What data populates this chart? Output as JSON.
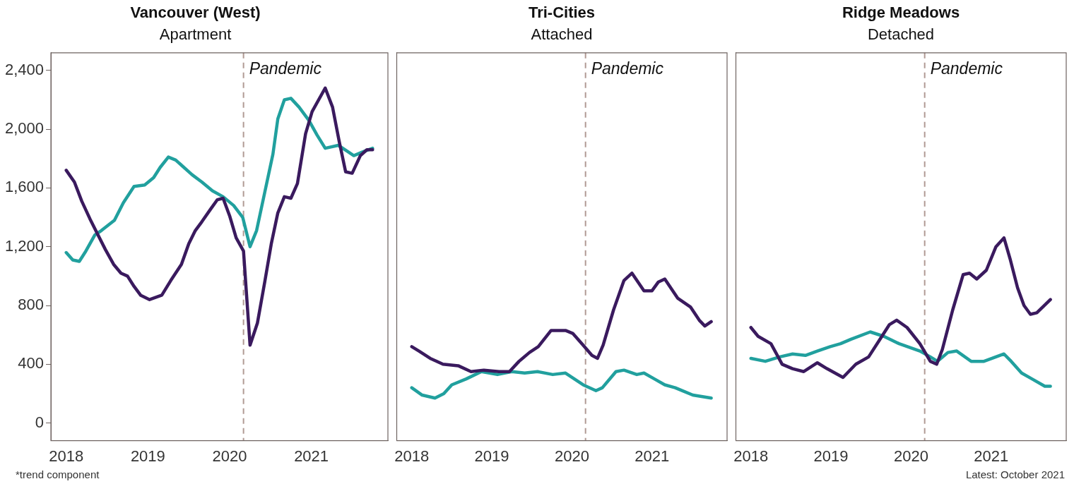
{
  "chart_data": [
    {
      "type": "line",
      "title": "Vancouver (West)",
      "subtitle": "Apartment",
      "legend": false,
      "line_style": "solid",
      "marker": "none",
      "xlim": [
        2017.8125,
        2021.9375
      ],
      "xticks": [
        2018,
        2019,
        2020,
        2021
      ],
      "ylim": [
        -120,
        2520
      ],
      "yticks": [
        {
          "value": 0,
          "label": "0"
        },
        {
          "value": 400,
          "label": "400"
        },
        {
          "value": 800,
          "label": "800"
        },
        {
          "value": 1200,
          "label": "1,200"
        },
        {
          "value": 1600,
          "label": "1,600"
        },
        {
          "value": 2000,
          "label": "2,000"
        },
        {
          "value": 2400,
          "label": "2,400"
        }
      ],
      "series": [
        {
          "color": "#3a1a5e",
          "x": [
            2018.0,
            2018.1,
            2018.19,
            2018.29,
            2018.38,
            2018.48,
            2018.58,
            2018.67,
            2018.75,
            2018.83,
            2018.91,
            2019.02,
            2019.17,
            2019.28,
            2019.41,
            2019.5,
            2019.58,
            2019.66,
            2019.76,
            2019.85,
            2019.92,
            2020.0,
            2020.08,
            2020.17,
            2020.25,
            2020.34,
            2020.43,
            2020.51,
            2020.59,
            2020.67,
            2020.75,
            2020.83,
            2020.93,
            2021.01,
            2021.17,
            2021.26,
            2021.34,
            2021.42,
            2021.5,
            2021.6,
            2021.68,
            2021.75
          ],
          "values": [
            1720,
            1640,
            1510,
            1390,
            1290,
            1180,
            1080,
            1020,
            1000,
            930,
            870,
            840,
            870,
            970,
            1080,
            1220,
            1310,
            1370,
            1450,
            1520,
            1530,
            1410,
            1260,
            1170,
            530,
            680,
            960,
            1220,
            1430,
            1540,
            1530,
            1630,
            1970,
            2120,
            2280,
            2150,
            1920,
            1710,
            1700,
            1820,
            1860,
            1860
          ]
        },
        {
          "color": "#21a09e",
          "x": [
            2018.0,
            2018.08,
            2018.16,
            2018.24,
            2018.35,
            2018.43,
            2018.59,
            2018.7,
            2018.83,
            2018.96,
            2019.07,
            2019.15,
            2019.25,
            2019.34,
            2019.54,
            2019.66,
            2019.79,
            2019.92,
            2020.05,
            2020.16,
            2020.25,
            2020.33,
            2020.43,
            2020.53,
            2020.59,
            2020.67,
            2020.75,
            2020.85,
            2020.97,
            2021.07,
            2021.17,
            2021.33,
            2021.44,
            2021.52,
            2021.65,
            2021.75
          ],
          "values": [
            1160,
            1110,
            1100,
            1170,
            1280,
            1310,
            1380,
            1500,
            1610,
            1620,
            1670,
            1740,
            1810,
            1790,
            1690,
            1640,
            1580,
            1540,
            1480,
            1400,
            1200,
            1310,
            1570,
            1830,
            2070,
            2200,
            2210,
            2150,
            2060,
            1960,
            1870,
            1890,
            1850,
            1820,
            1850,
            1870
          ]
        }
      ],
      "ref_lines": [
        {
          "axis": "x",
          "value": 2020.17,
          "label": "Pandemic",
          "color": "#b09a94",
          "line_style": "dashed"
        }
      ],
      "annotations": [
        "*trend component"
      ]
    },
    {
      "type": "line",
      "title": "Tri-Cities",
      "subtitle": "Attached",
      "legend": false,
      "line_style": "solid",
      "marker": "none",
      "tick_labels": "x",
      "xlim": [
        2017.8125,
        2021.9375
      ],
      "xticks": [
        2018,
        2019,
        2020,
        2021
      ],
      "ylim": [
        -120,
        2520
      ],
      "series": [
        {
          "color": "#3a1a5e",
          "x": [
            2018.0,
            2018.09,
            2018.23,
            2018.39,
            2018.58,
            2018.74,
            2018.9,
            2019.09,
            2019.22,
            2019.34,
            2019.47,
            2019.58,
            2019.74,
            2019.92,
            2020.01,
            2020.14,
            2020.25,
            2020.32,
            2020.39,
            2020.52,
            2020.65,
            2020.75,
            2020.9,
            2021.0,
            2021.08,
            2021.16,
            2021.32,
            2021.48,
            2021.59,
            2021.66,
            2021.74
          ],
          "values": [
            520,
            490,
            440,
            400,
            390,
            350,
            360,
            350,
            350,
            420,
            480,
            520,
            630,
            630,
            610,
            530,
            460,
            440,
            530,
            770,
            970,
            1020,
            900,
            900,
            960,
            980,
            850,
            790,
            700,
            660,
            690
          ]
        },
        {
          "color": "#21a09e",
          "x": [
            2018.0,
            2018.13,
            2018.29,
            2018.4,
            2018.5,
            2018.68,
            2018.87,
            2019.07,
            2019.25,
            2019.41,
            2019.57,
            2019.76,
            2019.92,
            2020.14,
            2020.3,
            2020.38,
            2020.55,
            2020.65,
            2020.81,
            2020.9,
            2021.03,
            2021.16,
            2021.29,
            2021.38,
            2021.51,
            2021.74
          ],
          "values": [
            240,
            190,
            170,
            200,
            260,
            300,
            350,
            330,
            350,
            340,
            350,
            330,
            340,
            260,
            220,
            240,
            350,
            360,
            330,
            340,
            300,
            260,
            240,
            220,
            190,
            170
          ]
        }
      ],
      "ref_lines": [
        {
          "axis": "x",
          "value": 2020.17,
          "label": "Pandemic",
          "color": "#b09a94",
          "line_style": "dashed"
        }
      ]
    },
    {
      "type": "line",
      "title": "Ridge Meadows",
      "subtitle": "Detached",
      "legend": false,
      "line_style": "solid",
      "marker": "none",
      "tick_labels": "x",
      "xlim": [
        2017.8125,
        2021.9375
      ],
      "xticks": [
        2018,
        2019,
        2020,
        2021
      ],
      "ylim": [
        -120,
        2520
      ],
      "series": [
        {
          "color": "#3a1a5e",
          "x": [
            2018.0,
            2018.09,
            2018.25,
            2018.39,
            2018.52,
            2018.66,
            2018.83,
            2018.95,
            2019.15,
            2019.31,
            2019.47,
            2019.6,
            2019.73,
            2019.82,
            2019.95,
            2020.11,
            2020.24,
            2020.32,
            2020.39,
            2020.52,
            2020.65,
            2020.73,
            2020.82,
            2020.94,
            2021.06,
            2021.16,
            2021.24,
            2021.33,
            2021.41,
            2021.49,
            2021.57,
            2021.74
          ],
          "values": [
            650,
            590,
            540,
            400,
            370,
            350,
            410,
            370,
            310,
            400,
            450,
            560,
            670,
            700,
            650,
            540,
            420,
            400,
            500,
            770,
            1010,
            1020,
            980,
            1040,
            1200,
            1260,
            1110,
            920,
            800,
            740,
            750,
            840
          ]
        },
        {
          "color": "#21a09e",
          "x": [
            2018.0,
            2018.18,
            2018.36,
            2018.52,
            2018.68,
            2018.83,
            2018.99,
            2019.12,
            2019.25,
            2019.49,
            2019.66,
            2019.85,
            2020.11,
            2020.24,
            2020.33,
            2020.46,
            2020.57,
            2020.75,
            2020.91,
            2021.16,
            2021.25,
            2021.38,
            2021.51,
            2021.67,
            2021.74
          ],
          "values": [
            440,
            420,
            450,
            470,
            460,
            490,
            520,
            540,
            570,
            620,
            590,
            540,
            490,
            450,
            420,
            480,
            490,
            420,
            420,
            470,
            420,
            340,
            300,
            250,
            250
          ]
        }
      ],
      "ref_lines": [
        {
          "axis": "x",
          "value": 2020.17,
          "label": "Pandemic",
          "color": "#b09a94",
          "line_style": "dashed"
        }
      ],
      "annotations": [
        "Latest: October 2021"
      ]
    }
  ]
}
